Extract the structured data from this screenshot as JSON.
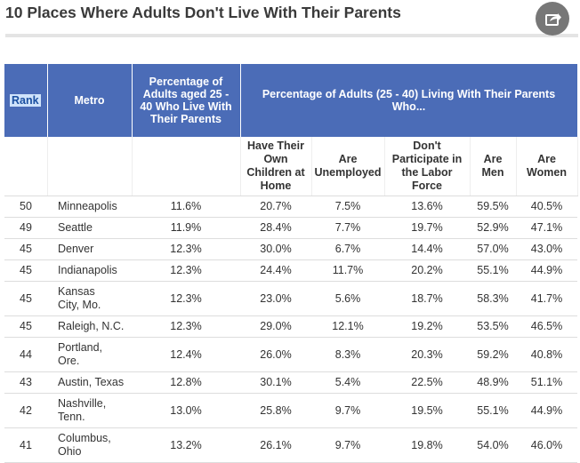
{
  "header": {
    "title": "10 Places Where Adults Don't Live With Their Parents"
  },
  "table": {
    "columns": [
      "Rank",
      "Metro",
      "Percentage of Adults aged 25 - 40 Who Live With Their Parents"
    ],
    "group_header": "Percentage of Adults (25 - 40) Living With Their Parents Who...",
    "subheaders": [
      "Have Their Own Children at Home",
      "Are Unemployed",
      "Don't Participate in the Labor Force",
      "Are Men",
      "Are Women"
    ],
    "rows": [
      [
        "50",
        "Minneapolis",
        "11.6%",
        "20.7%",
        "7.5%",
        "13.6%",
        "59.5%",
        "40.5%"
      ],
      [
        "49",
        "Seattle",
        "11.9%",
        "28.4%",
        "7.7%",
        "19.7%",
        "52.9%",
        "47.1%"
      ],
      [
        "45",
        "Denver",
        "12.3%",
        "30.0%",
        "6.7%",
        "14.4%",
        "57.0%",
        "43.0%"
      ],
      [
        "45",
        "Indianapolis",
        "12.3%",
        "24.4%",
        "11.7%",
        "20.2%",
        "55.1%",
        "44.9%"
      ],
      [
        "45",
        "Kansas City, Mo.",
        "12.3%",
        "23.0%",
        "5.6%",
        "18.7%",
        "58.3%",
        "41.7%"
      ],
      [
        "45",
        "Raleigh, N.C.",
        "12.3%",
        "29.0%",
        "12.1%",
        "19.2%",
        "53.5%",
        "46.5%"
      ],
      [
        "44",
        "Portland, Ore.",
        "12.4%",
        "26.0%",
        "8.3%",
        "20.3%",
        "59.2%",
        "40.8%"
      ],
      [
        "43",
        "Austin, Texas",
        "12.8%",
        "30.1%",
        "5.4%",
        "22.5%",
        "48.9%",
        "51.1%"
      ],
      [
        "42",
        "Nashville, Tenn.",
        "13.0%",
        "25.8%",
        "9.7%",
        "19.5%",
        "55.1%",
        "44.9%"
      ],
      [
        "41",
        "Columbus, Ohio",
        "13.2%",
        "26.1%",
        "9.7%",
        "19.8%",
        "54.0%",
        "46.0%"
      ]
    ]
  }
}
